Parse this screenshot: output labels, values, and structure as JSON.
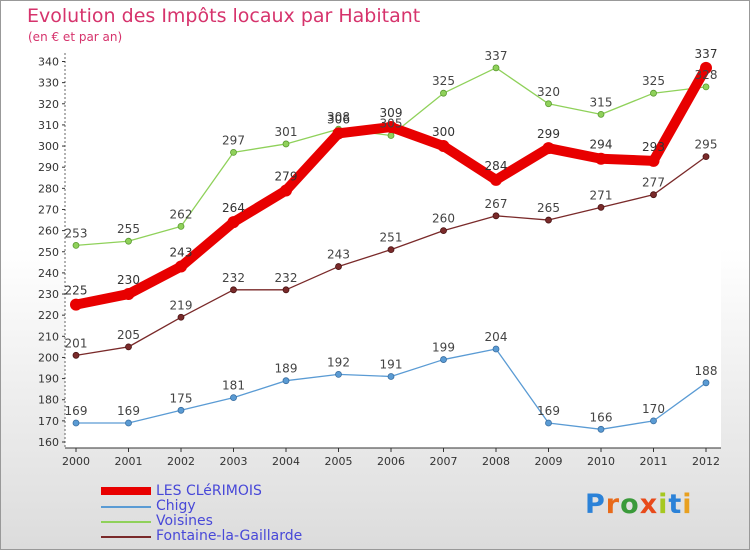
{
  "title": "Evolution des Impôts locaux par Habitant",
  "subtitle": "(en € et par an)",
  "logo": "Proxiti",
  "chart_data": {
    "type": "line",
    "title": "Evolution des Impôts locaux par Habitant",
    "subtitle": "(en € et par an)",
    "xlabel": "",
    "ylabel": "",
    "x": [
      2000,
      2001,
      2002,
      2003,
      2004,
      2005,
      2006,
      2007,
      2008,
      2009,
      2010,
      2011,
      2012
    ],
    "ylim": [
      160,
      340
    ],
    "ytick_step": 10,
    "grid": false,
    "legend_position": "bottom-left",
    "series": [
      {
        "name": "LES CLéRIMOIS",
        "color": "#e80000",
        "values": [
          225,
          230,
          243,
          264,
          279,
          306,
          309,
          300,
          284,
          299,
          294,
          293,
          337
        ]
      },
      {
        "name": "Chigy",
        "color": "#5a9bd4",
        "values": [
          169,
          169,
          175,
          181,
          189,
          192,
          191,
          199,
          204,
          169,
          166,
          170,
          188
        ]
      },
      {
        "name": "Voisines",
        "color": "#8fd15a",
        "values": [
          253,
          255,
          262,
          297,
          301,
          308,
          305,
          325,
          337,
          320,
          315,
          325,
          328
        ]
      },
      {
        "name": "Fontaine-la-Gaillarde",
        "color": "#7a2a2a",
        "values": [
          201,
          205,
          219,
          232,
          232,
          243,
          251,
          260,
          267,
          265,
          271,
          277,
          295
        ]
      }
    ]
  },
  "logo_colors": [
    "#2b82d8",
    "#e86a1a",
    "#3a9a3a",
    "#e84a1a",
    "#a6c820",
    "#2b82d8",
    "#e8a020"
  ]
}
